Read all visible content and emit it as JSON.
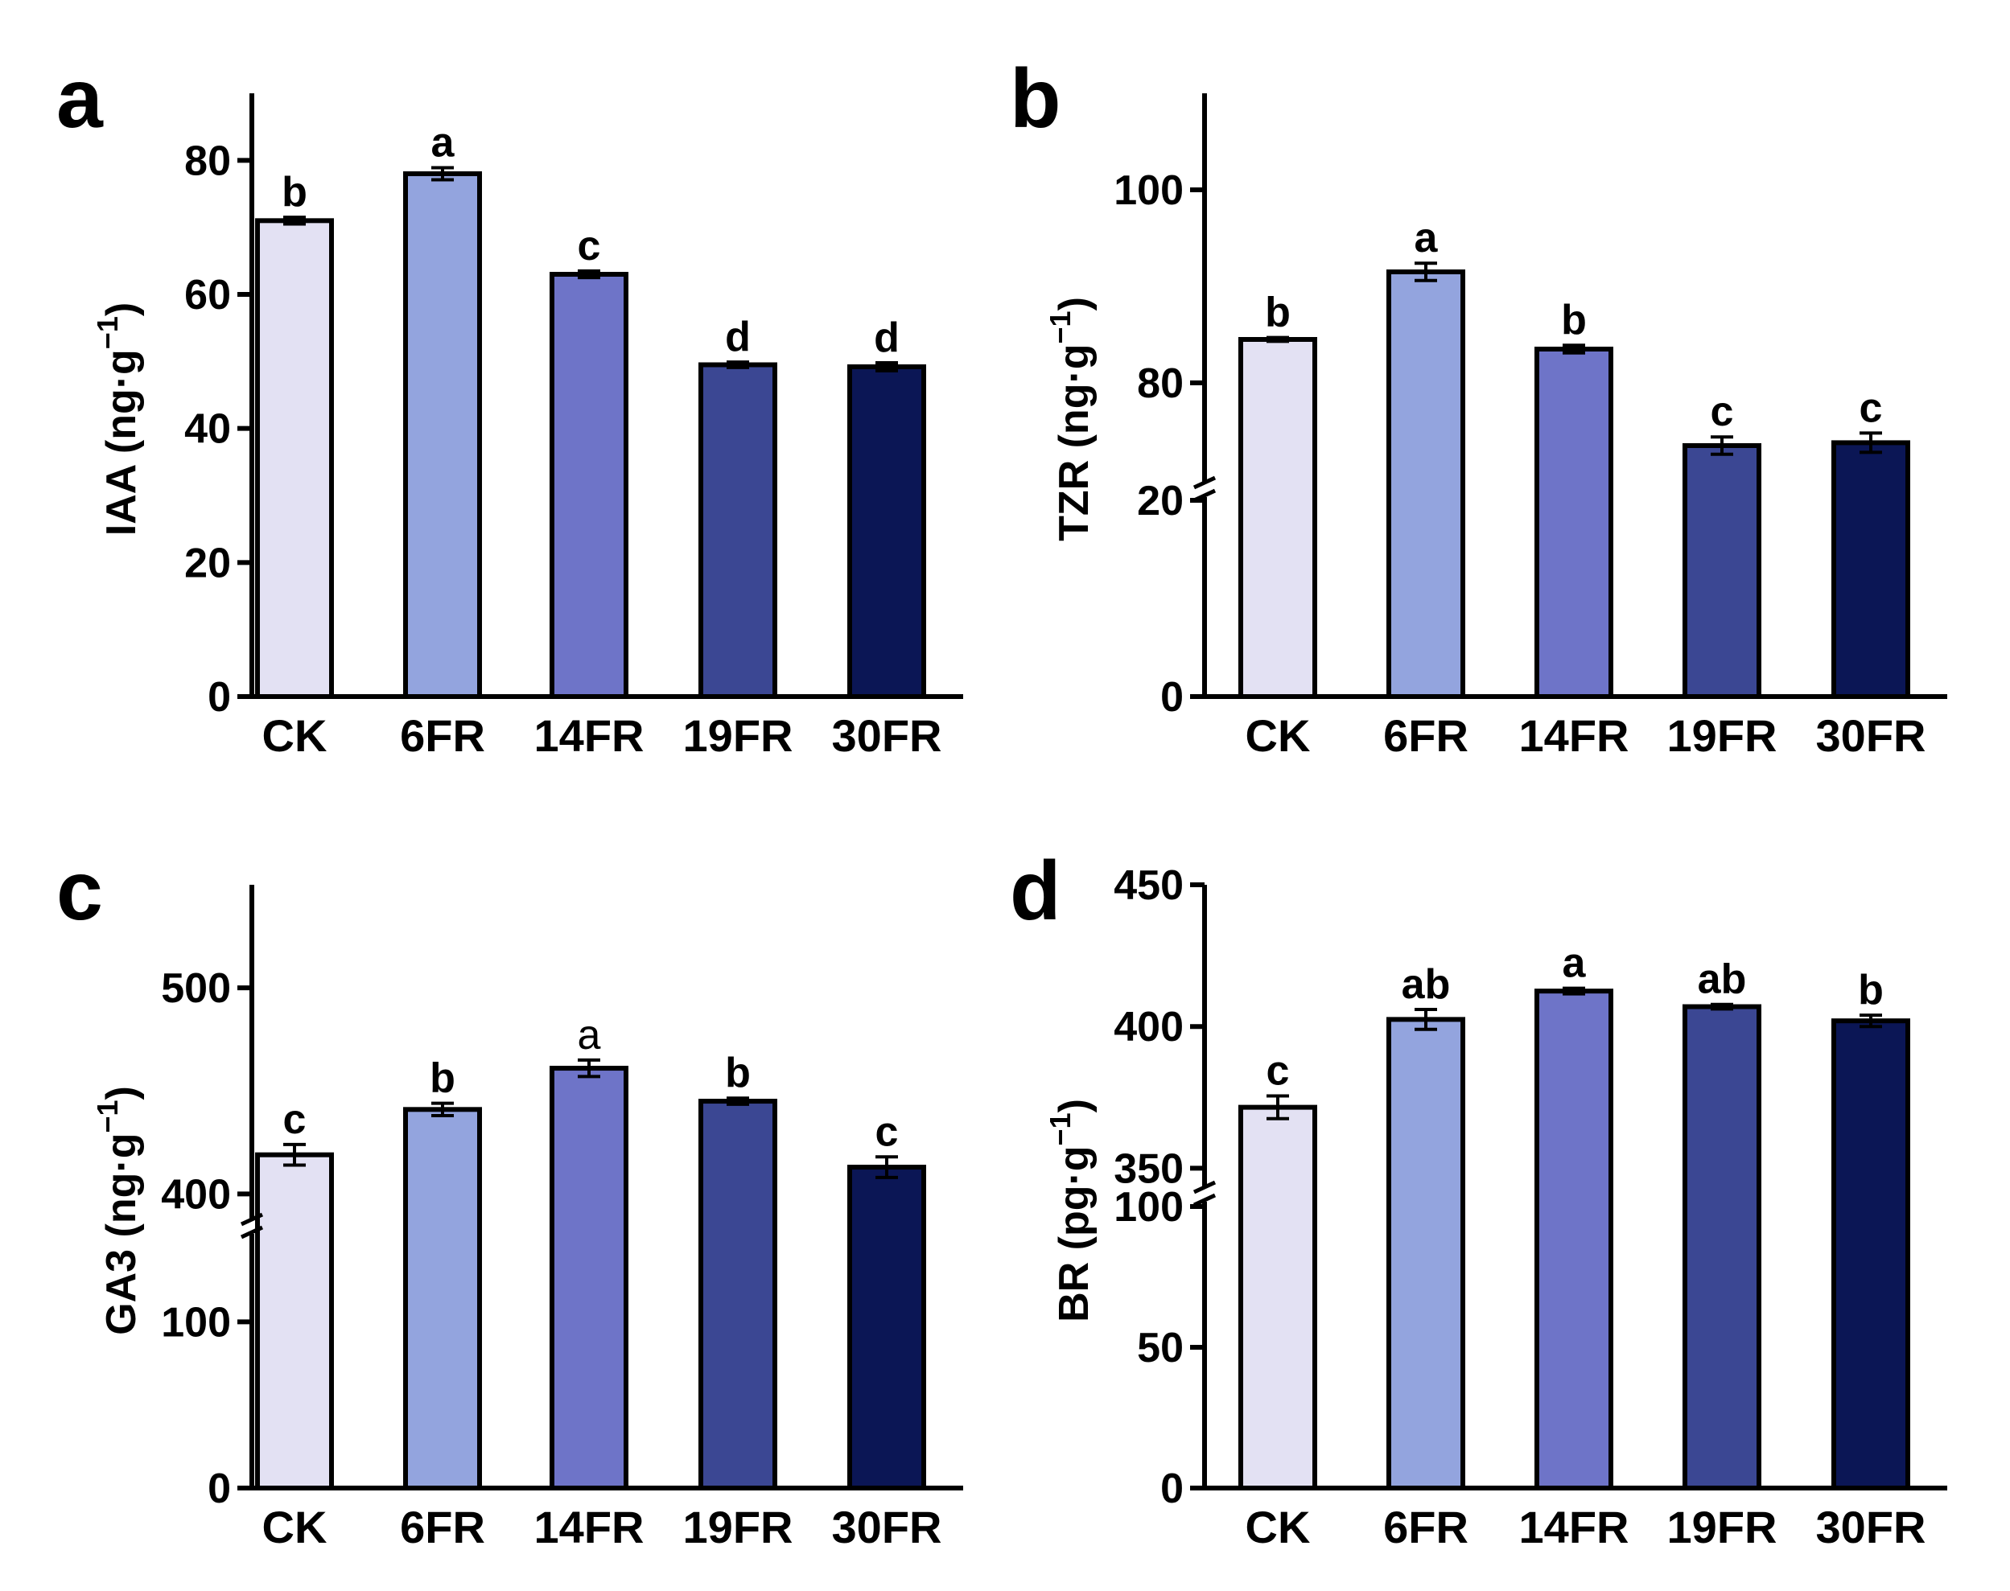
{
  "figure": {
    "colors": [
      "#e3e1f3",
      "#93a4de",
      "#6e74c8",
      "#3b4793",
      "#0b1655"
    ]
  },
  "chart_data": [
    {
      "panel": "a",
      "type": "bar",
      "categories": [
        "CK",
        "6FR",
        "14FR",
        "19FR",
        "30FR"
      ],
      "values": [
        71,
        78,
        63,
        49.5,
        49.2
      ],
      "errors": [
        0.5,
        0.9,
        0.5,
        0.4,
        0.6
      ],
      "significance": [
        "b",
        "a",
        "c",
        "d",
        "d"
      ],
      "ylabel": "IAA (ng·g",
      "ylabel_sup": "−1",
      "ylabel_end": ")",
      "yticks": [
        0,
        20,
        40,
        60,
        80
      ],
      "ylim": [
        0,
        90
      ],
      "axis_break": null
    },
    {
      "panel": "b",
      "type": "bar",
      "categories": [
        "CK",
        "6FR",
        "14FR",
        "19FR",
        "30FR"
      ],
      "values": [
        84.5,
        91.5,
        83.5,
        73.5,
        73.8
      ],
      "errors": [
        0.2,
        0.9,
        0.4,
        0.9,
        1.0
      ],
      "significance": [
        "b",
        "a",
        "b",
        "c",
        "c"
      ],
      "ylabel": "TZR (ng·g",
      "ylabel_sup": "−1",
      "ylabel_end": ")",
      "yticks": [
        0,
        20,
        80,
        100
      ],
      "ylim": [
        0,
        110
      ],
      "axis_break": {
        "low": 20,
        "high": 70
      }
    },
    {
      "panel": "c",
      "type": "bar",
      "categories": [
        "CK",
        "6FR",
        "14FR",
        "19FR",
        "30FR"
      ],
      "values": [
        419,
        441,
        461,
        445,
        413
      ],
      "errors": [
        5,
        3,
        4,
        1.5,
        5
      ],
      "significance": [
        "c",
        "b",
        "a",
        "b",
        "c"
      ],
      "significance_light": [
        false,
        false,
        true,
        false,
        false
      ],
      "ylabel": "GA3 (ng·g",
      "ylabel_sup": "−1",
      "ylabel_end": ")",
      "yticks": [
        0,
        100,
        400,
        500
      ],
      "ylim": [
        0,
        550
      ],
      "axis_break": {
        "low": 150,
        "high": 390
      }
    },
    {
      "panel": "d",
      "type": "bar",
      "categories": [
        "CK",
        "6FR",
        "14FR",
        "19FR",
        "30FR"
      ],
      "values": [
        371.5,
        402.5,
        412.5,
        407,
        402
      ],
      "errors": [
        4,
        3.5,
        1,
        0.8,
        2
      ],
      "significance": [
        "c",
        "ab",
        "a",
        "ab",
        "b"
      ],
      "ylabel": "BR (pg·g",
      "ylabel_sup": "−1",
      "ylabel_end": ")",
      "yticks": [
        0,
        50,
        100,
        350,
        400,
        450
      ],
      "ylim": [
        0,
        450
      ],
      "axis_break": {
        "low": 100,
        "high": 345
      }
    }
  ]
}
